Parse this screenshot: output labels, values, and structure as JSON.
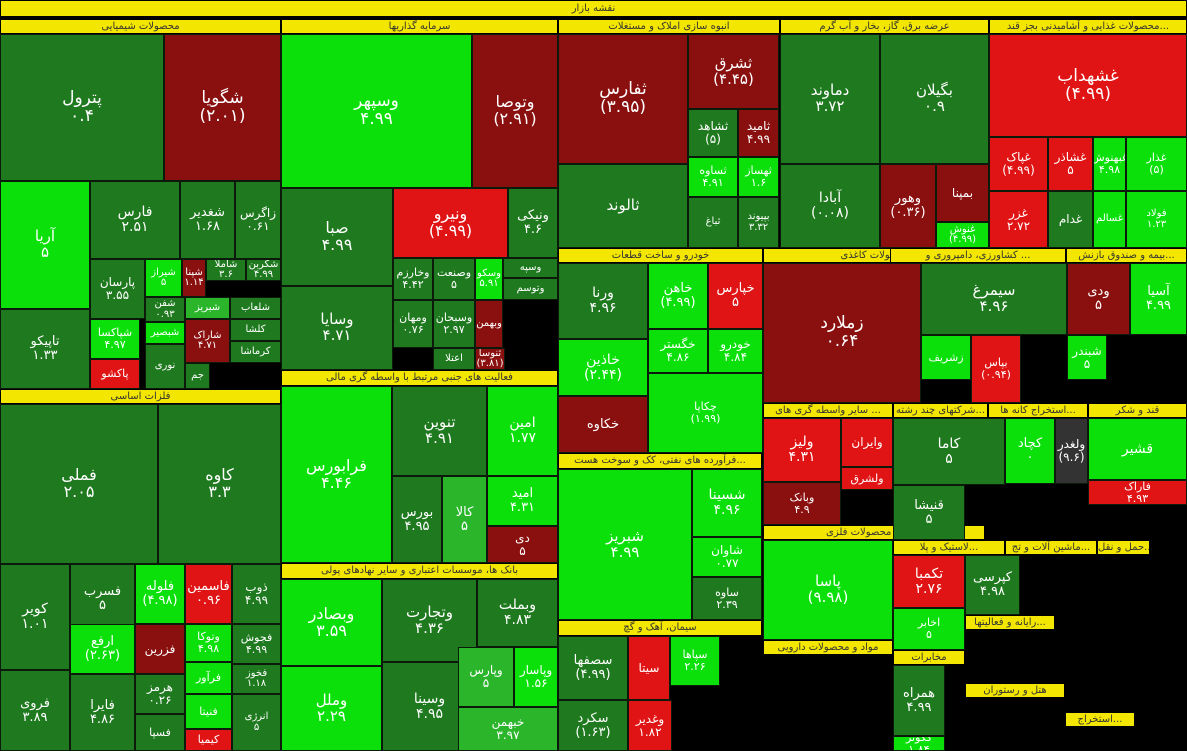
{
  "title": "نقشه بازار",
  "colors": {
    "dg": "#1f7a1f",
    "mg": "#2bb52b",
    "lg": "#0be00b",
    "dr": "#8a1010",
    "rr": "#e01414",
    "gray": "#333333"
  },
  "groups": [
    "محصولات شیمیایی",
    "سرمایه گذاریها",
    "انبوه سازی املاک و مستغلات",
    "عرضه برق، گاز، بخار و آب گرم",
    "محصولات غذایی و آشامیدنی بجز قند...",
    "فلزات اساسی",
    "فعالیت های جنبی مرتبط با واسطه گری مالی",
    "بانک ها، موسسات اعتباری و سایر نهادهای پولی",
    "خودرو و ساخت قطعات",
    "محصولات کاغذی",
    "کشاورزی، دامپروری و ...",
    "بیمه و صندوق بازنش...",
    "فرآورده های نفتی، کک و سوخت هست...",
    "سیمان، آهک و گچ",
    "استخراج کانه ها...",
    "شرکتهای چند رشته...",
    "سایر واسطه گری های ...",
    "قند و شکر",
    "ساخت محصولات فلزی",
    "لاستیک و پلا...",
    "ماشین آلات و تج...",
    "حمل و نقل...",
    "مواد و محصولات دارویی",
    "مخابرات",
    "رایانه و فعالیتها...",
    "هتل و رستوران",
    "استخراج..."
  ],
  "tiles": [
    {
      "n": "پترول",
      "v": "۰.۴"
    },
    {
      "n": "شگویا",
      "v": "(۲.۰۱)"
    },
    {
      "n": "آریا",
      "v": "۵"
    },
    {
      "n": "فارس",
      "v": "۲.۵۱"
    },
    {
      "n": "شغدیر",
      "v": "۱.۶۸"
    },
    {
      "n": "زاگرس",
      "v": "۰.۶۱"
    },
    {
      "n": "پارسان",
      "v": "۳.۵۵"
    },
    {
      "n": "تاپیکو",
      "v": "۱.۳۳"
    },
    {
      "n": "شپاکسا",
      "v": "۴.۹۷"
    },
    {
      "n": "پاکشو",
      "v": ""
    },
    {
      "n": "شیراز",
      "v": "۵"
    },
    {
      "n": "شپنا",
      "v": "۱.۱۴"
    },
    {
      "n": "شاملا",
      "v": "۳.۶"
    },
    {
      "n": "شکربن",
      "v": "۴.۹۹"
    },
    {
      "n": "شفن",
      "v": "۰.۹۳"
    },
    {
      "n": "شبریز",
      "v": ""
    },
    {
      "n": "شلعاب",
      "v": ""
    },
    {
      "n": "کلشا",
      "v": ""
    },
    {
      "n": "شبصیر",
      "v": ""
    },
    {
      "n": "شاراک",
      "v": "۴.۷۱"
    },
    {
      "n": "کرماشا",
      "v": ""
    },
    {
      "n": "جم",
      "v": ""
    },
    {
      "n": "نوری",
      "v": ""
    },
    {
      "n": "وسپهر",
      "v": "۴.۹۹"
    },
    {
      "n": "وتوصا",
      "v": "(۲.۹۱)"
    },
    {
      "n": "صبا",
      "v": "۴.۹۹"
    },
    {
      "n": "ونیرو",
      "v": "(۴.۹۹)"
    },
    {
      "n": "ونیکی",
      "v": "۴.۶"
    },
    {
      "n": "وسایا",
      "v": "۴.۷۱"
    },
    {
      "n": "وخارزم",
      "v": "۴.۴۲"
    },
    {
      "n": "وصنعت",
      "v": "۵"
    },
    {
      "n": "وسکو",
      "v": "۵.۹۱"
    },
    {
      "n": "وسپه",
      "v": ""
    },
    {
      "n": "وتوسم",
      "v": ""
    },
    {
      "n": "ومهان",
      "v": "۰.۷۶"
    },
    {
      "n": "وسبحان",
      "v": "۲.۹۷"
    },
    {
      "n": "وبهمن",
      "v": ""
    },
    {
      "n": "اعتلا",
      "v": ""
    },
    {
      "n": "ثنوسا",
      "v": "(۳.۸۱)"
    },
    {
      "n": "ثفارس",
      "v": "(۳.۹۵)"
    },
    {
      "n": "ثشرق",
      "v": "(۴.۴۵)"
    },
    {
      "n": "ثشاهد",
      "v": "(۵)"
    },
    {
      "n": "ثامید",
      "v": "۴.۹۹"
    },
    {
      "n": "ثساوه",
      "v": "۴.۹۱"
    },
    {
      "n": "ثهساز",
      "v": "۱.۶"
    },
    {
      "n": "ثالوند",
      "v": ""
    },
    {
      "n": "ثباغ",
      "v": ""
    },
    {
      "n": "بپیوند",
      "v": "۳.۳۲"
    },
    {
      "n": "دماوند",
      "v": "۳.۷۲"
    },
    {
      "n": "بگیلان",
      "v": "۰.۹"
    },
    {
      "n": "آبادا",
      "v": "(۰.۰۸)"
    },
    {
      "n": "وهور",
      "v": "(۰.۳۶)"
    },
    {
      "n": "بمپنا",
      "v": ""
    },
    {
      "n": "غنوش",
      "v": "(۴.۹۹)"
    },
    {
      "n": "غشهداب",
      "v": "(۴.۹۹)"
    },
    {
      "n": "غپاک",
      "v": "(۴.۹۹)"
    },
    {
      "n": "غشاذر",
      "v": "۵"
    },
    {
      "n": "غبهنوش",
      "v": "۴.۹۸"
    },
    {
      "n": "غذار",
      "v": "(۵)"
    },
    {
      "n": "غزر",
      "v": "۲.۷۲"
    },
    {
      "n": "غدام",
      "v": ""
    },
    {
      "n": "غسالم",
      "v": ""
    },
    {
      "n": "فولاد",
      "v": "۱.۲۳"
    },
    {
      "n": "فملی",
      "v": "۲.۰۵"
    },
    {
      "n": "کاوه",
      "v": "۳.۳"
    },
    {
      "n": "کویر",
      "v": "۱.۰۱"
    },
    {
      "n": "فسرب",
      "v": "۵"
    },
    {
      "n": "فلوله",
      "v": "(۴.۹۸)"
    },
    {
      "n": "فاسمین",
      "v": "۰.۹۶"
    },
    {
      "n": "ذوب",
      "v": "۴.۹۹"
    },
    {
      "n": "ارفع",
      "v": "(۲.۶۳)"
    },
    {
      "n": "فزرین",
      "v": ""
    },
    {
      "n": "وتوکا",
      "v": "۴.۹۸"
    },
    {
      "n": "فجوش",
      "v": "۴.۹۹"
    },
    {
      "n": "فخوز",
      "v": "۱.۱۸"
    },
    {
      "n": "فروی",
      "v": "۳.۸۹"
    },
    {
      "n": "فایرا",
      "v": "۴.۸۶"
    },
    {
      "n": "هرمز",
      "v": "۰.۲۶"
    },
    {
      "n": "فسپا",
      "v": ""
    },
    {
      "n": "فنیتا",
      "v": ""
    },
    {
      "n": "کیمیا",
      "v": ""
    },
    {
      "n": "فرآور",
      "v": ""
    },
    {
      "n": "انرژی",
      "v": "۵"
    },
    {
      "n": "فرابورس",
      "v": "۴.۴۶"
    },
    {
      "n": "تنوین",
      "v": "۴.۹۱"
    },
    {
      "n": "امین",
      "v": "۱.۷۷"
    },
    {
      "n": "بورس",
      "v": "۴.۹۵"
    },
    {
      "n": "کالا",
      "v": "۵"
    },
    {
      "n": "امید",
      "v": "۴.۳۱"
    },
    {
      "n": "دی",
      "v": "۵"
    },
    {
      "n": "وبصادر",
      "v": "۳.۵۹"
    },
    {
      "n": "وتجارت",
      "v": "۴.۳۶"
    },
    {
      "n": "وبملت",
      "v": "۴.۸۳"
    },
    {
      "n": "وملل",
      "v": "۲.۲۹"
    },
    {
      "n": "وسینا",
      "v": "۴.۹۵"
    },
    {
      "n": "وپاسار",
      "v": "۱.۵۶"
    },
    {
      "n": "وپارس",
      "v": "۵"
    },
    {
      "n": "خبهمن",
      "v": "۳.۹۷"
    },
    {
      "n": "ورنا",
      "v": "۴.۹۶"
    },
    {
      "n": "خاهن",
      "v": "(۴.۹۹)"
    },
    {
      "n": "خپارس",
      "v": "۵"
    },
    {
      "n": "خگستر",
      "v": "۴.۸۶"
    },
    {
      "n": "خودرو",
      "v": "۴.۸۴"
    },
    {
      "n": "خاذین",
      "v": "(۲.۴۴)"
    },
    {
      "n": "خکاوه",
      "v": ""
    },
    {
      "n": "چکاپا",
      "v": "(۱.۹۹)"
    },
    {
      "n": "زملارد",
      "v": "۰.۶۴"
    },
    {
      "n": "سیمرغ",
      "v": "۴.۹۶"
    },
    {
      "n": "زشریف",
      "v": ""
    },
    {
      "n": "بپاس",
      "v": "(۰.۹۴)"
    },
    {
      "n": "ودی",
      "v": "۵"
    },
    {
      "n": "آسیا",
      "v": "۴.۹۹"
    },
    {
      "n": "شبندر",
      "v": "۵"
    },
    {
      "n": "شبریز",
      "v": "۴.۹۹"
    },
    {
      "n": "شسینا",
      "v": "۴.۹۶"
    },
    {
      "n": "شاوان",
      "v": "۰.۷۷"
    },
    {
      "n": "ساوه",
      "v": "۲.۳۹"
    },
    {
      "n": "سصفها",
      "v": "(۴.۹۹)"
    },
    {
      "n": "سیتا",
      "v": ""
    },
    {
      "n": "سپاها",
      "v": "۲.۲۶"
    },
    {
      "n": "سکرد",
      "v": "(۱.۶۳)"
    },
    {
      "n": "وغدیر",
      "v": "۱.۸۲"
    },
    {
      "n": "کاما",
      "v": "۵"
    },
    {
      "n": "کچاد",
      "v": "۰"
    },
    {
      "n": "ولغدر",
      "v": "(۹.۶)"
    },
    {
      "n": "ولیز",
      "v": "۴.۳۱"
    },
    {
      "n": "وایران",
      "v": ""
    },
    {
      "n": "ولشرق",
      "v": ""
    },
    {
      "n": "وبانک",
      "v": "۴.۹"
    },
    {
      "n": "قنیشا",
      "v": "۵"
    },
    {
      "n": "قشیر",
      "v": ""
    },
    {
      "n": "فاراک",
      "v": "۴.۹۳"
    },
    {
      "n": "پاسا",
      "v": "(۹.۹۸)"
    },
    {
      "n": "تکمبا",
      "v": "۲.۷۶"
    },
    {
      "n": "کپرسی",
      "v": "۴.۹۸"
    },
    {
      "n": "اخابر",
      "v": "۵"
    },
    {
      "n": "همراه",
      "v": "۴.۹۹"
    },
    {
      "n": "گگوثر",
      "v": "۱.۸۴"
    }
  ]
}
